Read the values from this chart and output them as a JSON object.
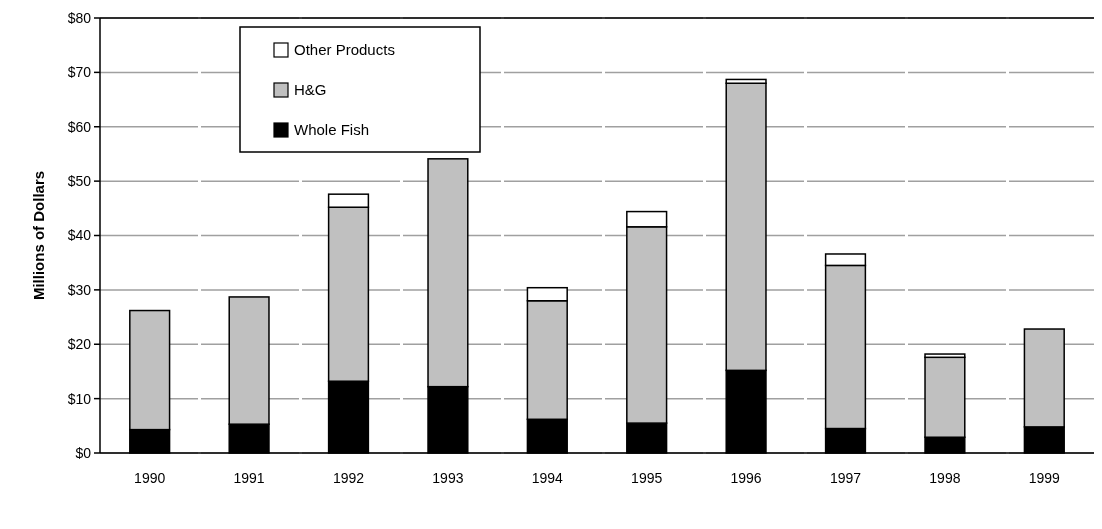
{
  "chart_data": {
    "type": "bar",
    "ylabel": "Millions of Dollars",
    "categories": [
      "1990",
      "1991",
      "1992",
      "1993",
      "1994",
      "1995",
      "1996",
      "1997",
      "1998",
      "1999"
    ],
    "stacked": true,
    "series": [
      {
        "name": "Whole Fish",
        "color": "#000000",
        "values": [
          4.3,
          5.3,
          13.2,
          12.2,
          6.2,
          5.5,
          15.2,
          4.5,
          2.9,
          4.8
        ]
      },
      {
        "name": "H&G",
        "color": "#c0c0c0",
        "values": [
          21.9,
          23.4,
          32.0,
          41.9,
          21.8,
          36.1,
          52.8,
          30.0,
          14.7,
          18.0
        ]
      },
      {
        "name": "Other Products",
        "color": "#ffffff",
        "values": [
          0,
          0,
          2.4,
          0,
          2.4,
          2.8,
          0.7,
          2.1,
          0.6,
          0
        ]
      }
    ],
    "ylim": [
      0,
      80
    ],
    "yticks": [
      {
        "value": 0,
        "label": "$0"
      },
      {
        "value": 10,
        "label": "$10"
      },
      {
        "value": 20,
        "label": "$20"
      },
      {
        "value": 30,
        "label": "$30"
      },
      {
        "value": 40,
        "label": "$40"
      },
      {
        "value": 50,
        "label": "$50"
      },
      {
        "value": 60,
        "label": "$60"
      },
      {
        "value": 70,
        "label": "$70"
      },
      {
        "value": 80,
        "label": "$80"
      }
    ],
    "grid": "y",
    "legend": "top left"
  }
}
